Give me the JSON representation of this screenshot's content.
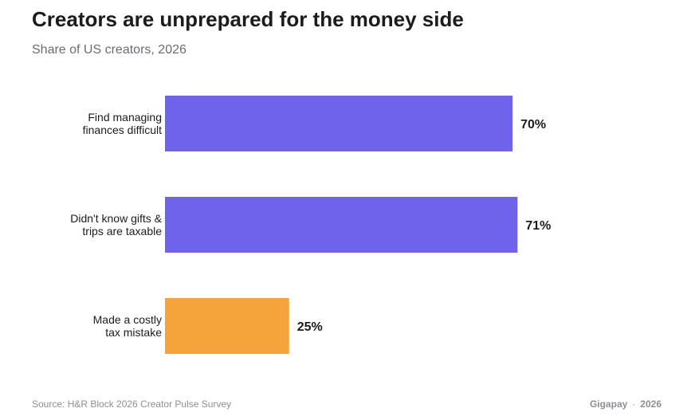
{
  "chart_data": {
    "type": "bar",
    "orientation": "horizontal",
    "title": "Creators are unprepared for the money side",
    "subtitle": "Share of US creators, 2026",
    "categories": [
      [
        "Find managing",
        "finances difficult"
      ],
      [
        "Didn't know gifts &",
        "trips are taxable"
      ],
      [
        "Made a costly",
        "tax mistake"
      ]
    ],
    "values": [
      70,
      71,
      25
    ],
    "value_labels": [
      "70%",
      "71%",
      "25%"
    ],
    "colors": [
      "#6e63ea",
      "#6e63ea",
      "#f5a43c"
    ],
    "xlim": [
      0,
      100
    ],
    "grid": false
  },
  "footer": {
    "source": "Source: H&R Block 2026 Creator Pulse Survey",
    "brand": "Gigapay",
    "separator": "·",
    "year": "2026"
  }
}
